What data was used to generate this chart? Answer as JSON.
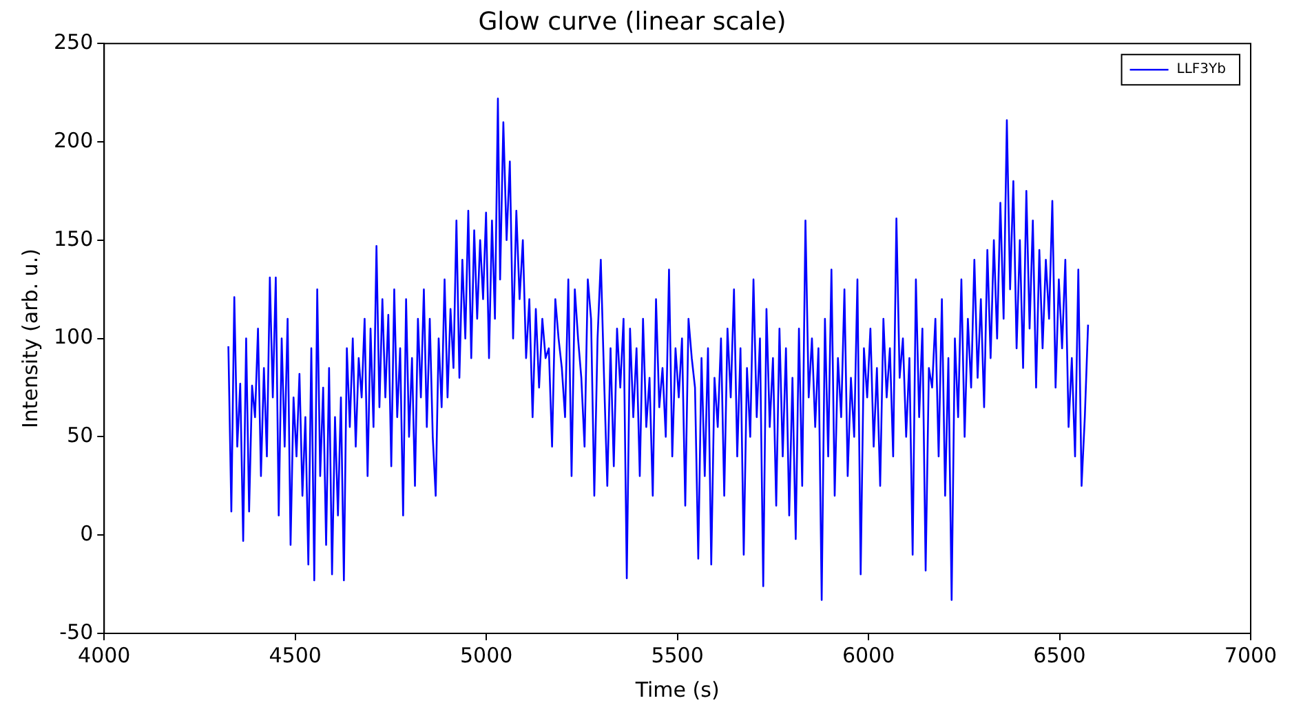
{
  "chart_data": {
    "type": "line",
    "title": "Glow curve (linear scale)",
    "xlabel": "Time (s)",
    "ylabel": "Intensity (arb. u.)",
    "xlim": [
      4000,
      7000
    ],
    "xticks": [
      4000,
      4500,
      5000,
      5500,
      6000,
      6500,
      7000
    ],
    "ylim": [
      -50,
      250
    ],
    "yticks": [
      -50,
      0,
      50,
      100,
      150,
      200,
      250
    ],
    "legend": "top right",
    "grid": false,
    "line_style": "solid",
    "marker": "none",
    "series": [
      {
        "name": "LLF3Yb",
        "color": "#0000ff",
        "x": [
          4325,
          4332.75,
          4340.5,
          4348.25,
          4356,
          4363.75,
          4371.5,
          4379.25,
          4387,
          4394.75,
          4402.5,
          4410.25,
          4418,
          4425.75,
          4433.5,
          4441.25,
          4449,
          4456.75,
          4464.5,
          4472.25,
          4480,
          4487.75,
          4495.5,
          4503.25,
          4511,
          4518.75,
          4526.5,
          4534.25,
          4542,
          4549.75,
          4557.5,
          4565.25,
          4573,
          4580.75,
          4588.5,
          4596.25,
          4604,
          4611.75,
          4619.5,
          4627.25,
          4635,
          4642.75,
          4650.5,
          4658.25,
          4666,
          4673.75,
          4681.5,
          4689.25,
          4697,
          4704.75,
          4712.5,
          4720.25,
          4728,
          4735.75,
          4743.5,
          4751.25,
          4759,
          4766.75,
          4774.5,
          4782.25,
          4790,
          4797.75,
          4805.5,
          4813.25,
          4821,
          4828.75,
          4836.5,
          4844.25,
          4852,
          4859.75,
          4867.5,
          4875.25,
          4883,
          4890.75,
          4898.5,
          4906.25,
          4914,
          4921.75,
          4929.5,
          4937.25,
          4945,
          4952.75,
          4960.5,
          4968.25,
          4976,
          4983.75,
          4991.5,
          4999.25,
          5007,
          5014.75,
          5022.5,
          5030.25,
          5036,
          5044.5,
          5053,
          5061.5,
          5070,
          5078.5,
          5087,
          5095.5,
          5104,
          5112.5,
          5121,
          5129.5,
          5138,
          5146.5,
          5155,
          5163.5,
          5172,
          5180.5,
          5189,
          5197.5,
          5206,
          5214.5,
          5223,
          5231.5,
          5240,
          5248.5,
          5257,
          5265.5,
          5274,
          5282.5,
          5291,
          5299.5,
          5308,
          5316.5,
          5325,
          5333.5,
          5342,
          5350.5,
          5359,
          5367.5,
          5376,
          5384.5,
          5393,
          5401.5,
          5410,
          5418.5,
          5427,
          5435.5,
          5444,
          5452.5,
          5461,
          5469.5,
          5478,
          5486.5,
          5495,
          5503.5,
          5512,
          5520.5,
          5529,
          5537.5,
          5546,
          5554.5,
          5563,
          5571.5,
          5580,
          5588.5,
          5597,
          5605.5,
          5614,
          5622.5,
          5631,
          5639.5,
          5648,
          5656.5,
          5665,
          5673.5,
          5682,
          5690.5,
          5699,
          5707.5,
          5716,
          5724.5,
          5733,
          5741.5,
          5750,
          5758.5,
          5767,
          5775.5,
          5784,
          5792.5,
          5801,
          5809.5,
          5818,
          5826.5,
          5835,
          5843.5,
          5852,
          5860.5,
          5869,
          5877.5,
          5886,
          5894.5,
          5903,
          5911.5,
          5920,
          5928.5,
          5937,
          5945.5,
          5954,
          5962.5,
          5971,
          5979.5,
          5988,
          5996.5,
          6005,
          6013.5,
          6022,
          6030.5,
          6039,
          6047.5,
          6056,
          6064.5,
          6073,
          6081.5,
          6090,
          6098.5,
          6107,
          6115.5,
          6124,
          6132.5,
          6141,
          6149.5,
          6158,
          6166.5,
          6175,
          6183.5,
          6192,
          6200.5,
          6209,
          6217.5,
          6226,
          6234.5,
          6243,
          6251.5,
          6260,
          6268.5,
          6277,
          6285.5,
          6294,
          6302.5,
          6311,
          6319.5,
          6328,
          6336.5,
          6345,
          6353.5,
          6362,
          6370.5,
          6379,
          6387.5,
          6396,
          6404.5,
          6413,
          6421.5,
          6430,
          6438.5,
          6447,
          6455.5,
          6464,
          6472.5,
          6481,
          6489.5,
          6498,
          6506.5,
          6515,
          6523.5,
          6532,
          6540.5,
          6549,
          6557.5,
          6566,
          6574.5
        ],
        "values": [
          96,
          12,
          121,
          45,
          77,
          -3,
          100,
          12,
          76,
          60,
          105,
          30,
          85,
          40,
          131,
          70,
          131,
          10,
          100,
          45,
          110,
          -5,
          70,
          40,
          82,
          20,
          60,
          -15,
          95,
          -23,
          125,
          30,
          75,
          -5,
          85,
          -20,
          60,
          10,
          70,
          -23,
          95,
          55,
          100,
          45,
          90,
          70,
          110,
          30,
          105,
          55,
          147,
          65,
          120,
          70,
          112,
          35,
          125,
          60,
          95,
          10,
          120,
          50,
          90,
          25,
          110,
          70,
          125,
          55,
          110,
          50,
          20,
          100,
          65,
          130,
          70,
          115,
          85,
          160,
          80,
          140,
          100,
          165,
          90,
          155,
          110,
          150,
          120,
          164,
          90,
          160,
          110,
          222,
          130,
          210,
          150,
          190,
          100,
          165,
          120,
          150,
          90,
          120,
          60,
          115,
          75,
          110,
          90,
          95,
          45,
          120,
          100,
          85,
          60,
          130,
          30,
          125,
          100,
          80,
          45,
          130,
          110,
          20,
          100,
          140,
          80,
          25,
          95,
          35,
          105,
          75,
          110,
          -22,
          105,
          60,
          95,
          30,
          110,
          55,
          80,
          20,
          120,
          65,
          85,
          50,
          135,
          40,
          95,
          70,
          100,
          15,
          110,
          90,
          75,
          -12,
          90,
          30,
          95,
          -15,
          80,
          55,
          100,
          20,
          105,
          70,
          125,
          40,
          95,
          -10,
          85,
          50,
          130,
          60,
          100,
          -26,
          115,
          55,
          90,
          15,
          105,
          40,
          95,
          10,
          80,
          -2,
          105,
          25,
          160,
          70,
          100,
          55,
          95,
          -33,
          110,
          40,
          135,
          20,
          90,
          60,
          125,
          30,
          80,
          50,
          130,
          -20,
          95,
          70,
          105,
          45,
          85,
          25,
          110,
          70,
          95,
          40,
          161,
          80,
          100,
          50,
          90,
          -10,
          130,
          60,
          105,
          -18,
          85,
          75,
          110,
          40,
          120,
          20,
          90,
          -33,
          100,
          60,
          130,
          50,
          110,
          75,
          140,
          80,
          120,
          65,
          145,
          90,
          150,
          100,
          169,
          110,
          211,
          125,
          180,
          95,
          150,
          85,
          175,
          105,
          160,
          75,
          145,
          95,
          140,
          110,
          170,
          75,
          130,
          95,
          140,
          55,
          90,
          40,
          135,
          25,
          60,
          107
        ]
      }
    ]
  }
}
